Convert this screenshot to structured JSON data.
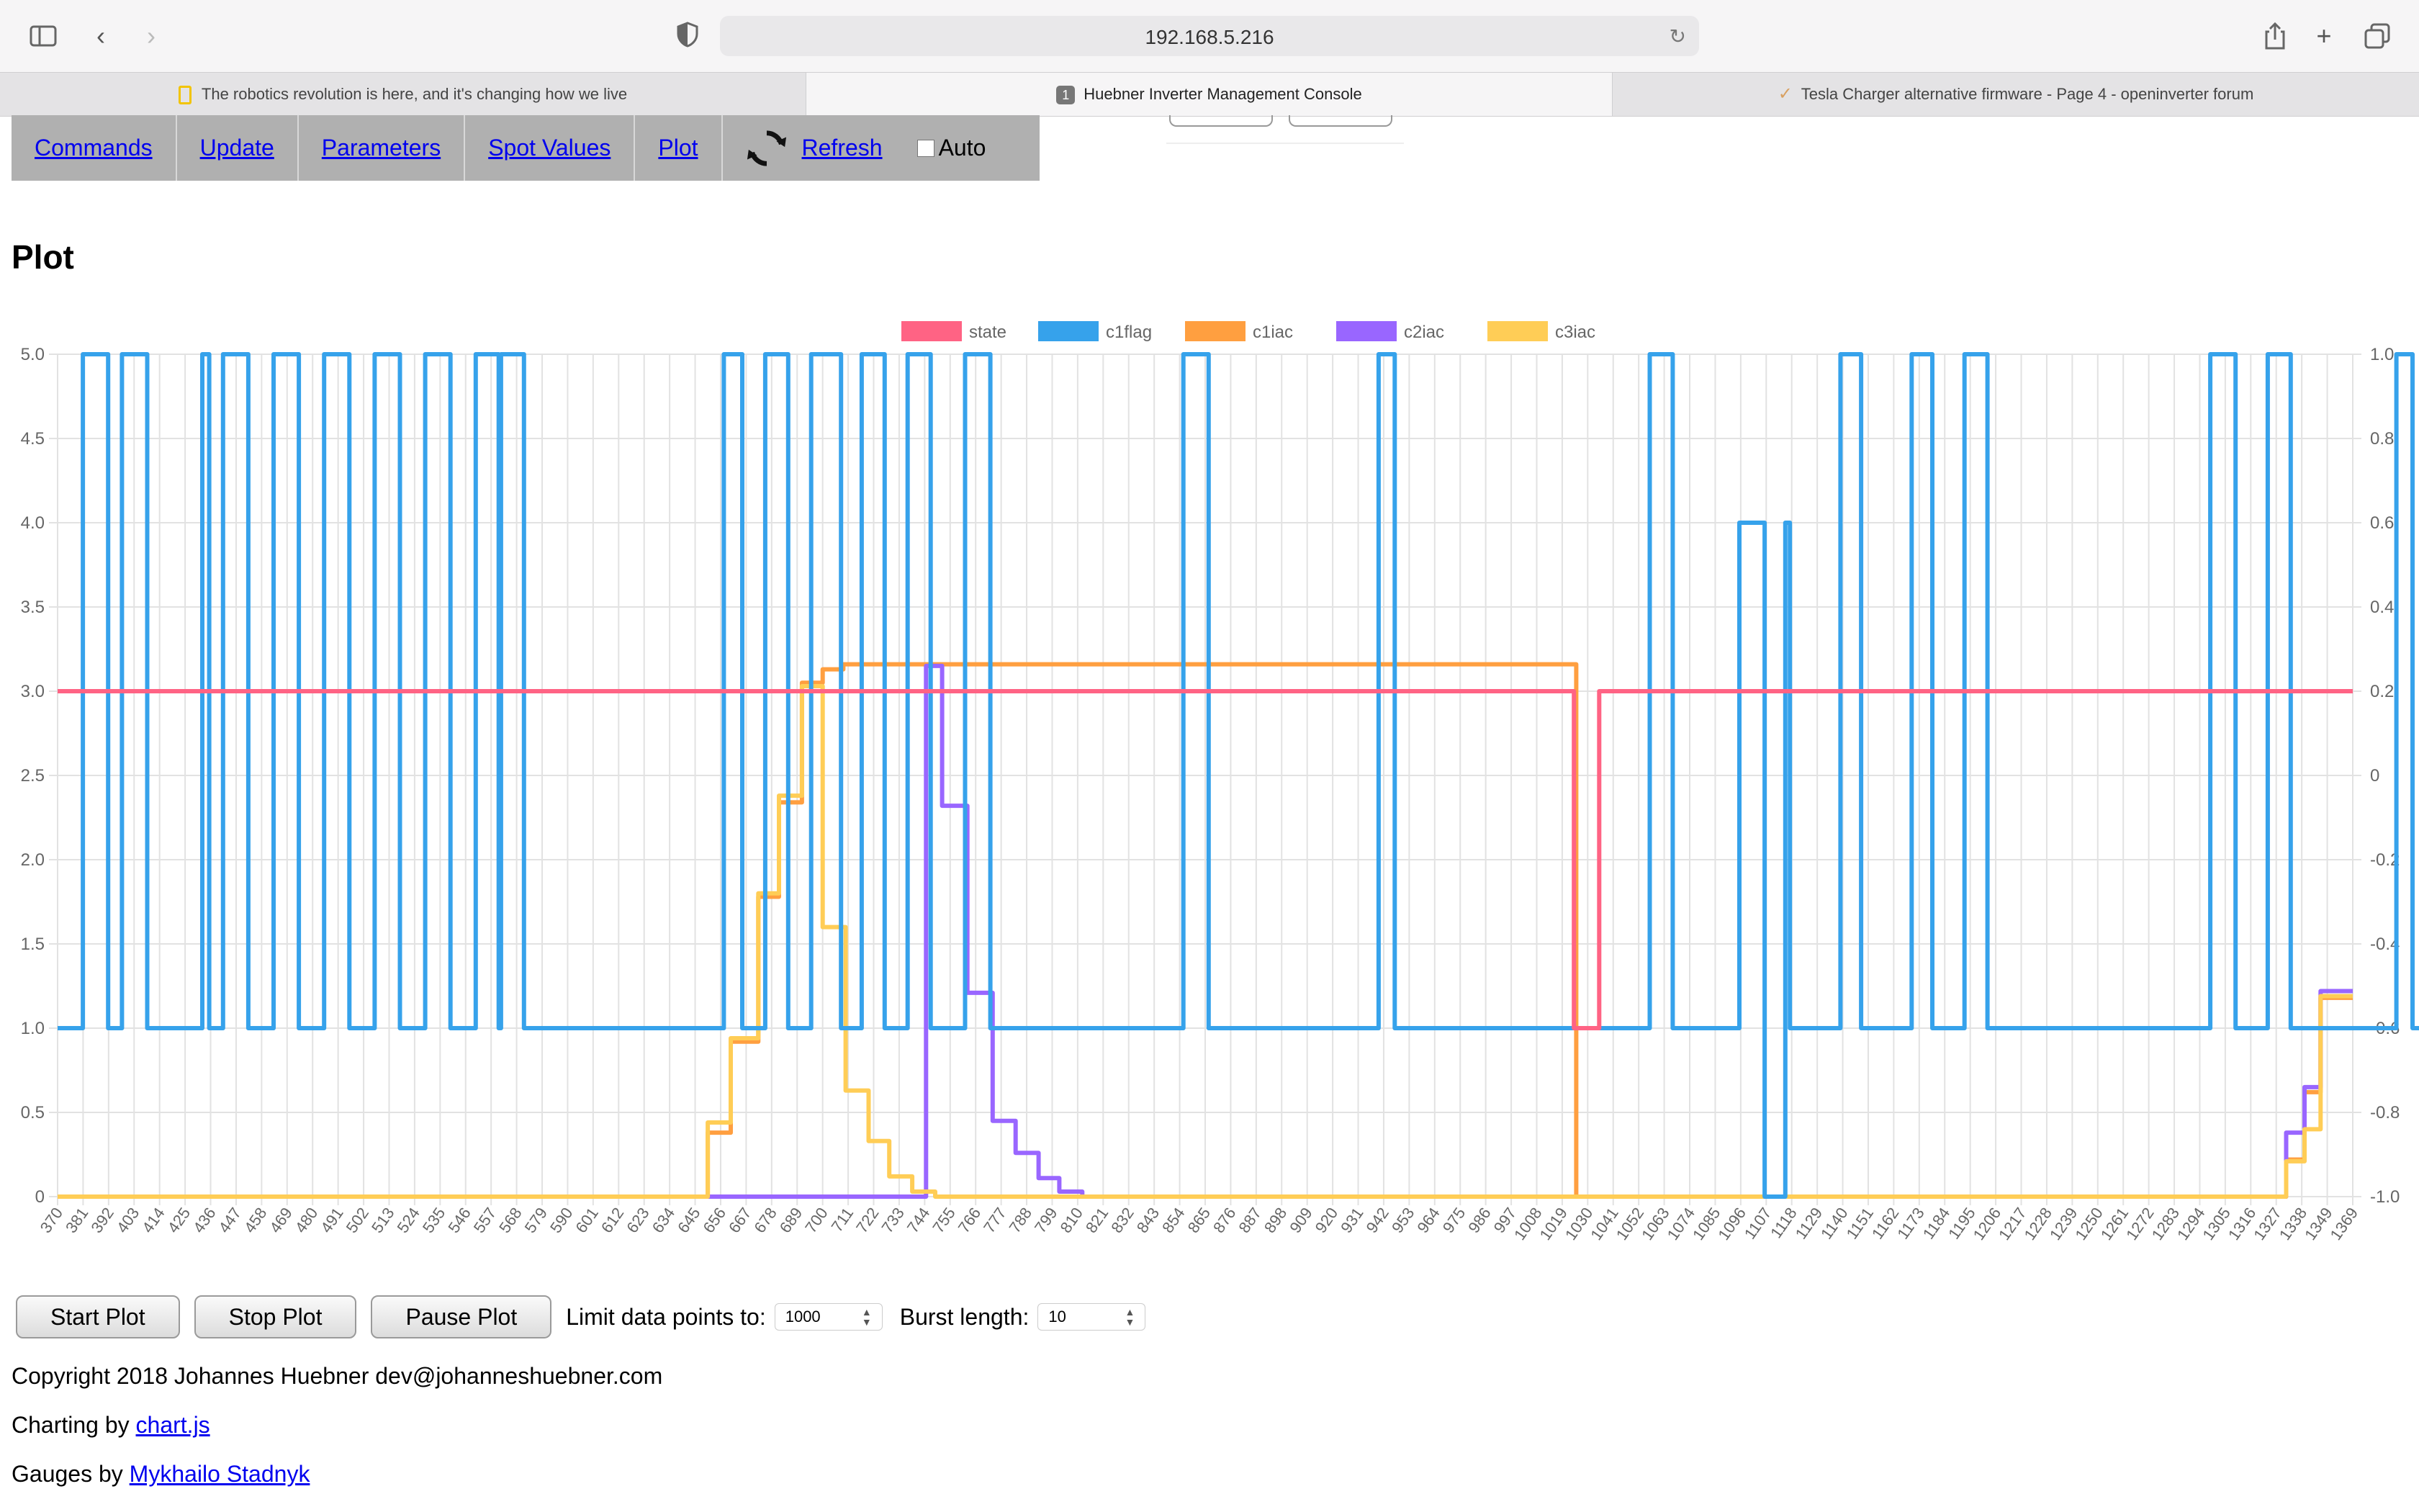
{
  "browser": {
    "url": "192.168.5.216",
    "tabs": [
      {
        "title": "The robotics revolution is here, and it's changing how we live",
        "active": false
      },
      {
        "title": "Huebner Inverter Management Console",
        "active": true,
        "badge": "1"
      },
      {
        "title": "Tesla Charger alternative firmware - Page 4 - openinverter forum",
        "active": false
      }
    ]
  },
  "menu": {
    "items": [
      "Commands",
      "Update",
      "Parameters",
      "Spot Values",
      "Plot"
    ],
    "refresh": "Refresh",
    "auto": "Auto"
  },
  "page": {
    "title": "Plot"
  },
  "controls": {
    "start": "Start Plot",
    "stop": "Stop Plot",
    "pause": "Pause Plot",
    "limit_label": "Limit data points to:",
    "limit_value": "1000",
    "burst_label": "Burst length:",
    "burst_value": "10"
  },
  "footer": {
    "copyright": "Copyright 2018 Johannes Huebner dev@johanneshuebner.com",
    "charting_prefix": "Charting by ",
    "charting_link": "chart.js",
    "gauges_prefix": "Gauges by ",
    "gauges_link": "Mykhailo Stadnyk"
  },
  "chart_data": {
    "type": "line",
    "x_labels": [
      "370",
      "381",
      "392",
      "403",
      "414",
      "425",
      "436",
      "447",
      "458",
      "469",
      "480",
      "491",
      "502",
      "513",
      "524",
      "535",
      "546",
      "557",
      "568",
      "579",
      "590",
      "601",
      "612",
      "623",
      "634",
      "645",
      "656",
      "667",
      "678",
      "689",
      "700",
      "711",
      "722",
      "733",
      "744",
      "755",
      "766",
      "777",
      "788",
      "799",
      "810",
      "821",
      "832",
      "843",
      "854",
      "865",
      "876",
      "887",
      "898",
      "909",
      "920",
      "931",
      "942",
      "953",
      "964",
      "975",
      "986",
      "997",
      "1008",
      "1019",
      "1030",
      "1041",
      "1052",
      "1063",
      "1074",
      "1085",
      "1096",
      "1107",
      "1118",
      "1129",
      "1140",
      "1151",
      "1162",
      "1173",
      "1184",
      "1195",
      "1206",
      "1217",
      "1228",
      "1239",
      "1250",
      "1261",
      "1272",
      "1283",
      "1294",
      "1305",
      "1316",
      "1327",
      "1338",
      "1349",
      "1369"
    ],
    "x_range": [
      370,
      1369
    ],
    "y_left": {
      "min": 0,
      "max": 5.0,
      "ticks": [
        "0",
        "0.5",
        "1.0",
        "1.5",
        "2.0",
        "2.5",
        "3.0",
        "3.5",
        "4.0",
        "4.5",
        "5.0"
      ]
    },
    "y_right": {
      "min": -1.0,
      "max": 1.0,
      "ticks": [
        "-1.0",
        "-0.8",
        "-0.6",
        "-0.4",
        "-0.2",
        "0",
        "0.2",
        "0.4",
        "0.6",
        "0.8",
        "1.0"
      ]
    },
    "grid": true,
    "legend_position": "top",
    "series": [
      {
        "name": "state",
        "color": "#ff6384",
        "steps": [
          [
            370,
            3
          ],
          [
            1030,
            1
          ],
          [
            1041,
            3
          ],
          [
            1369,
            3
          ]
        ]
      },
      {
        "name": "c1flag",
        "color": "#36a2eb",
        "steps": [
          [
            370,
            1
          ],
          [
            381,
            5
          ],
          [
            392,
            1
          ],
          [
            398,
            5
          ],
          [
            409,
            1
          ],
          [
            433,
            5
          ],
          [
            436,
            1
          ],
          [
            442,
            5
          ],
          [
            453,
            1
          ],
          [
            464,
            5
          ],
          [
            475,
            1
          ],
          [
            486,
            5
          ],
          [
            497,
            1
          ],
          [
            508,
            5
          ],
          [
            519,
            1
          ],
          [
            530,
            5
          ],
          [
            541,
            1
          ],
          [
            552,
            5
          ],
          [
            562,
            1
          ],
          [
            563,
            5
          ],
          [
            573,
            1
          ],
          [
            660,
            5
          ],
          [
            668,
            1
          ],
          [
            678,
            5
          ],
          [
            688,
            1
          ],
          [
            698,
            5
          ],
          [
            711,
            1
          ],
          [
            720,
            5
          ],
          [
            730,
            1
          ],
          [
            740,
            5
          ],
          [
            750,
            1
          ],
          [
            765,
            5
          ],
          [
            776,
            1
          ],
          [
            860,
            5
          ],
          [
            871,
            1
          ],
          [
            945,
            5
          ],
          [
            952,
            1
          ],
          [
            1063,
            5
          ],
          [
            1073,
            1
          ],
          [
            1101,
            1
          ],
          [
            1102,
            4
          ],
          [
            1112,
            4
          ],
          [
            1113,
            0
          ],
          [
            1121,
            0
          ],
          [
            1122,
            4
          ],
          [
            1124,
            1
          ],
          [
            1146,
            5
          ],
          [
            1155,
            1
          ],
          [
            1177,
            5
          ],
          [
            1186,
            1
          ],
          [
            1200,
            5
          ],
          [
            1210,
            1
          ],
          [
            1307,
            5
          ],
          [
            1318,
            1
          ],
          [
            1332,
            5
          ],
          [
            1342,
            1
          ],
          [
            1388,
            5
          ],
          [
            1395,
            1
          ],
          [
            1402,
            5
          ],
          [
            1407,
            1
          ],
          [
            1369,
            1
          ]
        ]
      },
      {
        "name": "c1iac",
        "color": "#ff9f40",
        "steps": [
          [
            370,
            0
          ],
          [
            653,
            0.38
          ],
          [
            663,
            0.92
          ],
          [
            675,
            1.78
          ],
          [
            684,
            2.34
          ],
          [
            694,
            3.05
          ],
          [
            703,
            3.13
          ],
          [
            712,
            3.16
          ],
          [
            1030,
            3.16
          ],
          [
            1031,
            0
          ],
          [
            1338,
            0
          ],
          [
            1340,
            0.22
          ],
          [
            1348,
            0.62
          ],
          [
            1355,
            1.18
          ],
          [
            1369,
            1.18
          ]
        ]
      },
      {
        "name": "c2iac",
        "color": "#9966ff",
        "steps": [
          [
            370,
            0
          ],
          [
            748,
            3.15
          ],
          [
            755,
            2.32
          ],
          [
            766,
            1.21
          ],
          [
            777,
            0.45
          ],
          [
            787,
            0.26
          ],
          [
            797,
            0.11
          ],
          [
            806,
            0.03
          ],
          [
            816,
            0
          ],
          [
            1338,
            0
          ],
          [
            1340,
            0.38
          ],
          [
            1348,
            0.65
          ],
          [
            1355,
            1.22
          ],
          [
            1369,
            1.22
          ]
        ]
      },
      {
        "name": "c3iac",
        "color": "#ffcd56",
        "steps": [
          [
            370,
            0
          ],
          [
            653,
            0.44
          ],
          [
            663,
            0.94
          ],
          [
            675,
            1.8
          ],
          [
            684,
            2.38
          ],
          [
            694,
            3.03
          ],
          [
            703,
            1.6
          ],
          [
            713,
            0.63
          ],
          [
            723,
            0.33
          ],
          [
            732,
            0.12
          ],
          [
            742,
            0.03
          ],
          [
            752,
            0
          ],
          [
            1338,
            0
          ],
          [
            1340,
            0.21
          ],
          [
            1348,
            0.4
          ],
          [
            1355,
            1.19
          ],
          [
            1369,
            1.19
          ]
        ]
      }
    ]
  }
}
